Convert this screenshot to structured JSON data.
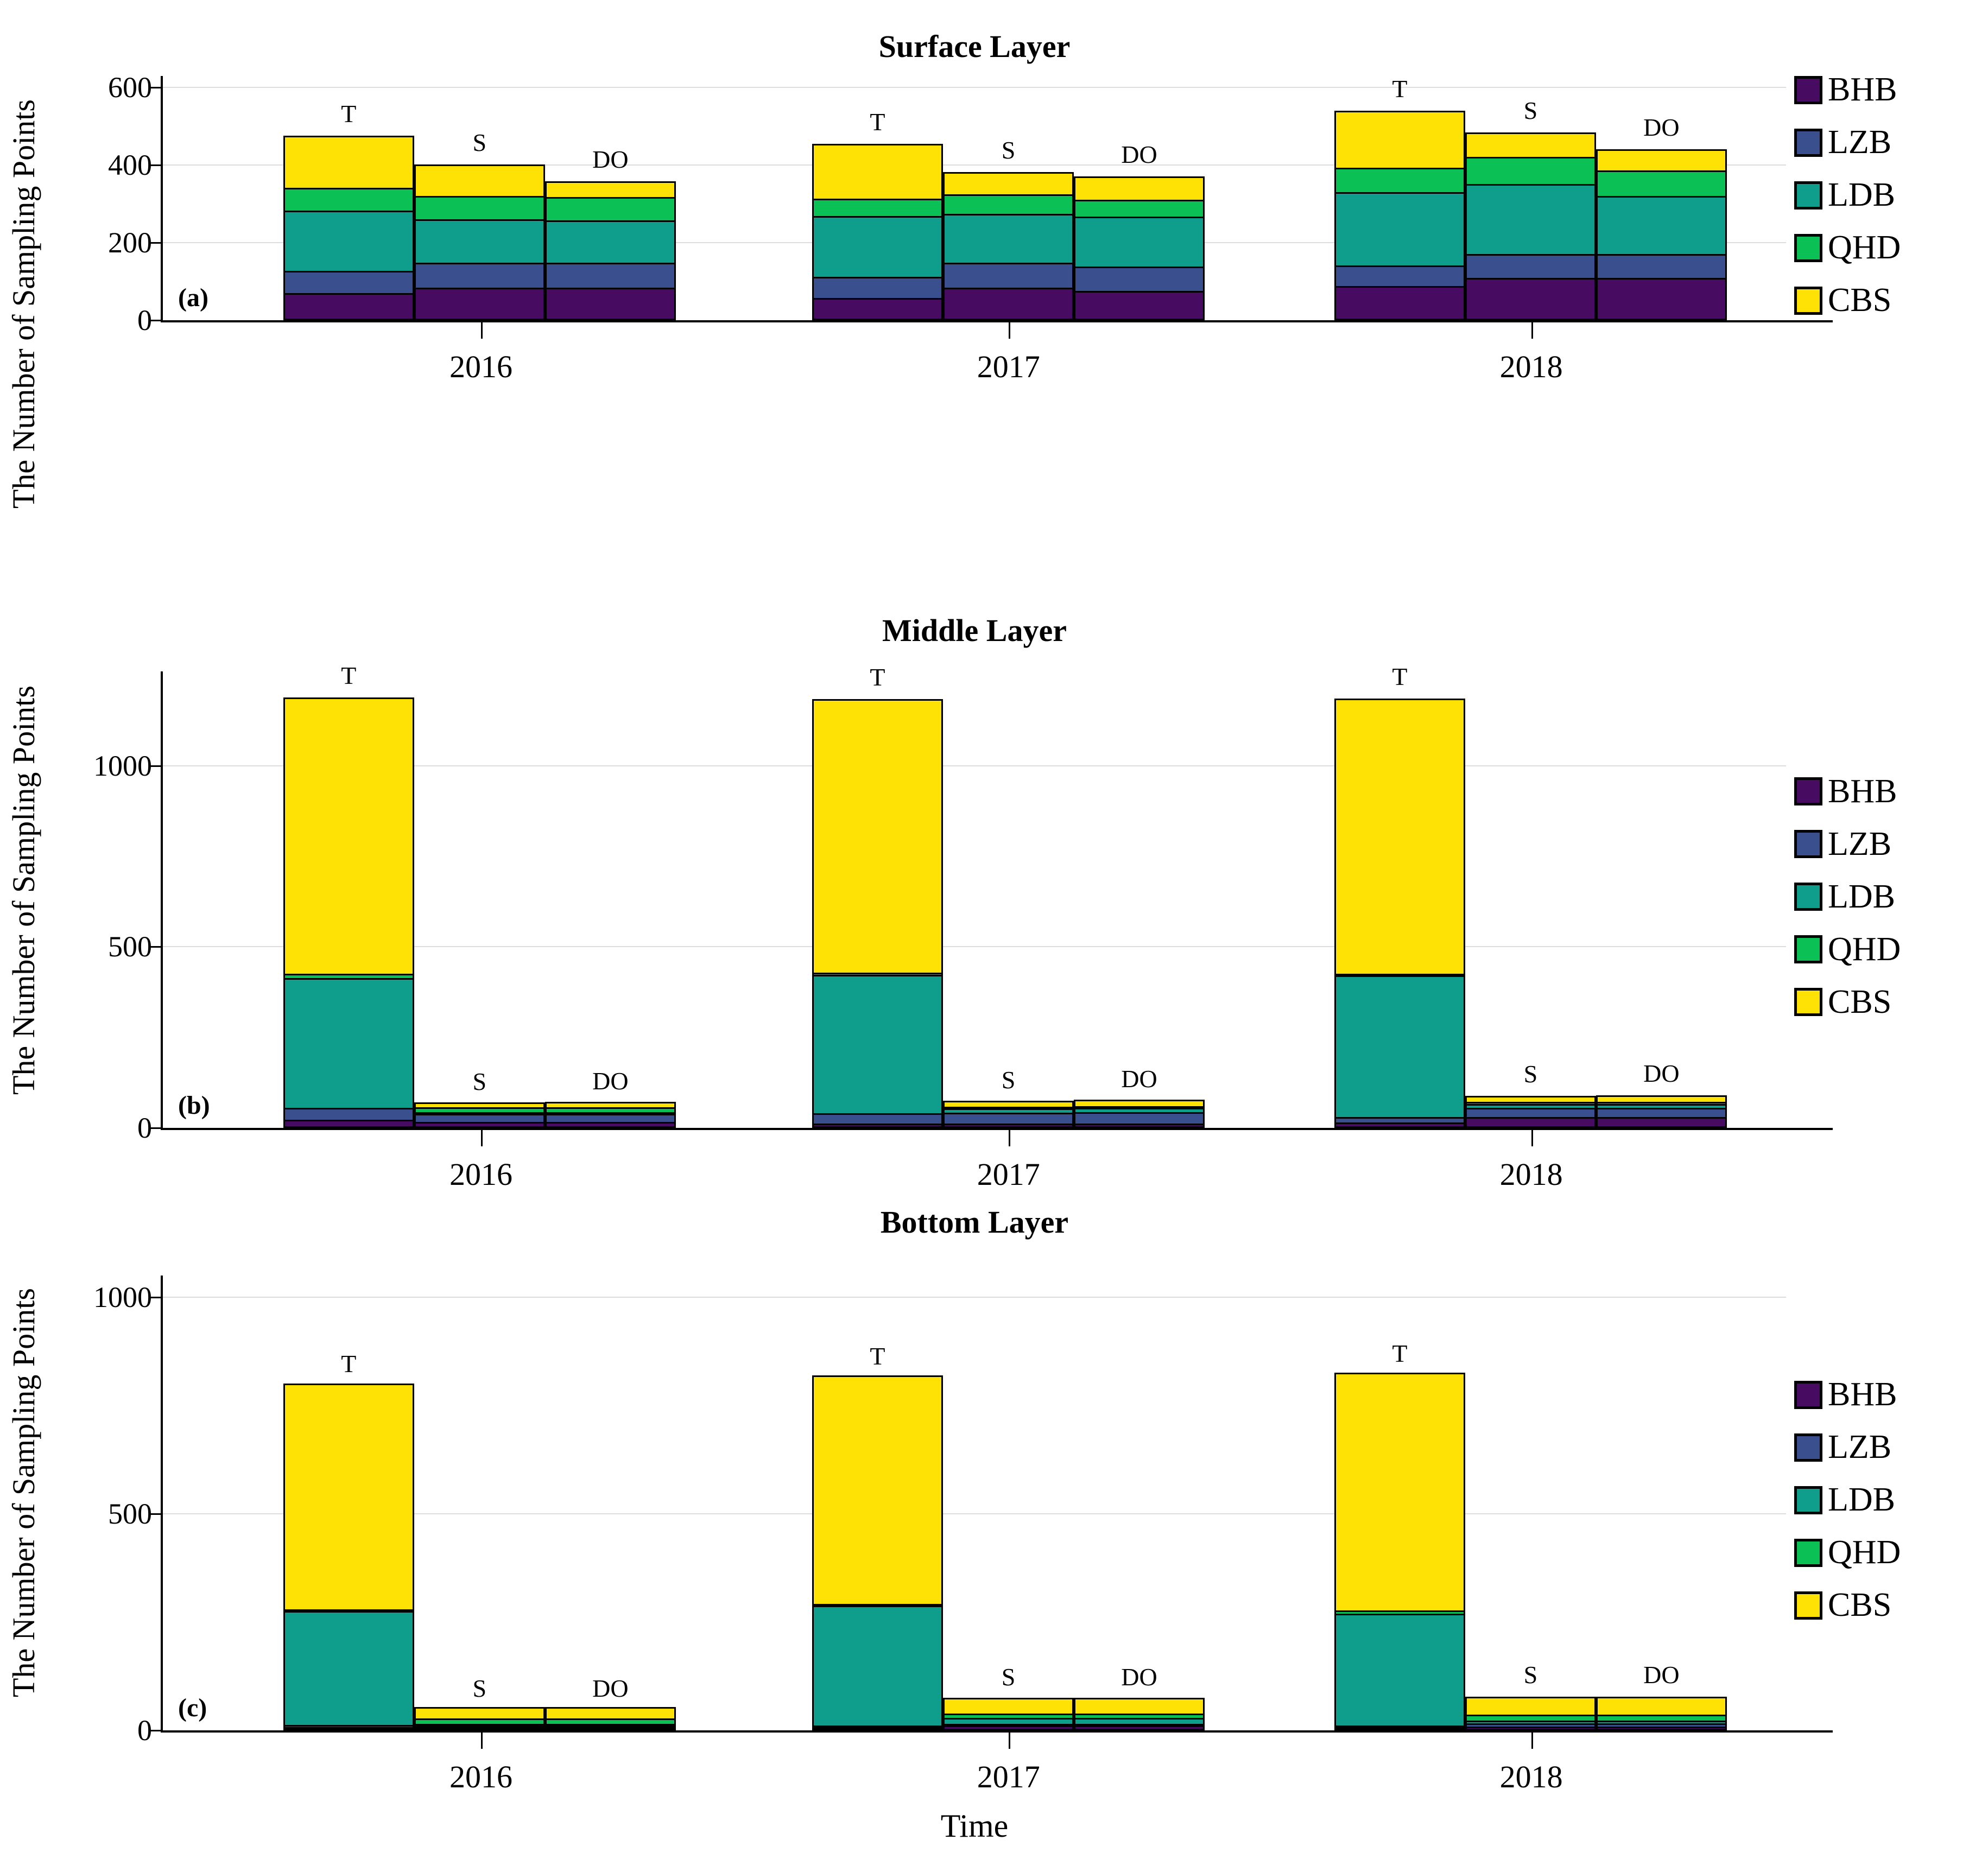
{
  "figure": {
    "xlabel": "Time",
    "ylabel": "The Number of Sampling Points"
  },
  "legend": {
    "entries": [
      {
        "label": "BHB",
        "color": "#470B62"
      },
      {
        "label": "LZB",
        "color": "#3A508E"
      },
      {
        "label": "LDB",
        "color": "#0F9E8C"
      },
      {
        "label": "QHD",
        "color": "#0BC155"
      },
      {
        "label": "CBS",
        "color": "#FFE205"
      }
    ]
  },
  "chart_data": [
    {
      "type": "bar",
      "stacked": true,
      "title": "Surface Layer",
      "panel_label": "(a)",
      "ylabel": "The Number of Sampling Points",
      "xlabel": "",
      "ylim": [
        0,
        630
      ],
      "yticks": [
        0,
        200,
        400,
        600
      ],
      "grid": true,
      "legend_position": "right",
      "categories": [
        "2016",
        "2017",
        "2018"
      ],
      "bar_labels": [
        "T",
        "S",
        "DO"
      ],
      "series_order": [
        "BHB",
        "LZB",
        "LDB",
        "QHD",
        "CBS"
      ],
      "groups": [
        {
          "year": "2016",
          "bars": [
            {
              "label": "T",
              "segments": {
                "BHB": 70,
                "LZB": 57,
                "LDB": 156,
                "QHD": 59,
                "CBS": 134
              },
              "total": 476
            },
            {
              "label": "S",
              "segments": {
                "BHB": 84,
                "LZB": 65,
                "LDB": 112,
                "QHD": 59,
                "CBS": 82
              },
              "total": 402
            },
            {
              "label": "DO",
              "segments": {
                "BHB": 84,
                "LZB": 65,
                "LDB": 108,
                "QHD": 61,
                "CBS": 40
              },
              "total": 358
            }
          ]
        },
        {
          "year": "2017",
          "bars": [
            {
              "label": "T",
              "segments": {
                "BHB": 57,
                "LZB": 55,
                "LDB": 157,
                "QHD": 45,
                "CBS": 141
              },
              "total": 455
            },
            {
              "label": "S",
              "segments": {
                "BHB": 84,
                "LZB": 65,
                "LDB": 126,
                "QHD": 50,
                "CBS": 57
              },
              "total": 382
            },
            {
              "label": "DO",
              "segments": {
                "BHB": 76,
                "LZB": 63,
                "LDB": 128,
                "QHD": 44,
                "CBS": 60
              },
              "total": 371
            }
          ]
        },
        {
          "year": "2018",
          "bars": [
            {
              "label": "T",
              "segments": {
                "BHB": 88,
                "LZB": 53,
                "LDB": 190,
                "QHD": 62,
                "CBS": 148
              },
              "total": 541
            },
            {
              "label": "S",
              "segments": {
                "BHB": 109,
                "LZB": 62,
                "LDB": 181,
                "QHD": 69,
                "CBS": 63
              },
              "total": 484
            },
            {
              "label": "DO",
              "segments": {
                "BHB": 109,
                "LZB": 62,
                "LDB": 150,
                "QHD": 66,
                "CBS": 54
              },
              "total": 441
            }
          ]
        }
      ]
    },
    {
      "type": "bar",
      "stacked": true,
      "title": "Middle Layer",
      "panel_label": "(b)",
      "ylabel": "The Number of Sampling Points",
      "xlabel": "",
      "ylim": [
        0,
        1260
      ],
      "yticks": [
        0,
        500,
        1000
      ],
      "grid": true,
      "legend_position": "right",
      "categories": [
        "2016",
        "2017",
        "2018"
      ],
      "bar_labels": [
        "T",
        "S",
        "DO"
      ],
      "series_order": [
        "BHB",
        "LZB",
        "LDB",
        "QHD",
        "CBS"
      ],
      "groups": [
        {
          "year": "2016",
          "bars": [
            {
              "label": "T",
              "segments": {
                "BHB": 22,
                "LZB": 34,
                "LDB": 357,
                "QHD": 13,
                "CBS": 762
              },
              "total": 1188
            },
            {
              "label": "S",
              "segments": {
                "BHB": 16,
                "LZB": 23,
                "LDB": 2,
                "QHD": 14,
                "CBS": 13
              },
              "total": 68
            },
            {
              "label": "DO",
              "segments": {
                "BHB": 16,
                "LZB": 23,
                "LDB": 2,
                "QHD": 14,
                "CBS": 14
              },
              "total": 69
            }
          ]
        },
        {
          "year": "2017",
          "bars": [
            {
              "label": "T",
              "segments": {
                "BHB": 12,
                "LZB": 28,
                "LDB": 383,
                "QHD": 5,
                "CBS": 755
              },
              "total": 1183
            },
            {
              "label": "S",
              "segments": {
                "BHB": 12,
                "LZB": 30,
                "LDB": 12,
                "QHD": 2,
                "CBS": 16
              },
              "total": 72
            },
            {
              "label": "DO",
              "segments": {
                "BHB": 12,
                "LZB": 32,
                "LDB": 12,
                "QHD": 2,
                "CBS": 17
              },
              "total": 75
            }
          ]
        },
        {
          "year": "2018",
          "bars": [
            {
              "label": "T",
              "segments": {
                "BHB": 15,
                "LZB": 15,
                "LDB": 391,
                "QHD": 4,
                "CBS": 760
              },
              "total": 1185
            },
            {
              "label": "S",
              "segments": {
                "BHB": 30,
                "LZB": 26,
                "LDB": 10,
                "QHD": 6,
                "CBS": 17
              },
              "total": 89
            },
            {
              "label": "DO",
              "segments": {
                "BHB": 30,
                "LZB": 26,
                "LDB": 10,
                "QHD": 6,
                "CBS": 18
              },
              "total": 90
            }
          ]
        }
      ]
    },
    {
      "type": "bar",
      "stacked": true,
      "title": "Bottom Layer",
      "panel_label": "(c)",
      "ylabel": "The Number of Sampling Points",
      "xlabel": "Time",
      "ylim": [
        0,
        1050
      ],
      "yticks": [
        0,
        500,
        1000
      ],
      "grid": true,
      "legend_position": "right",
      "categories": [
        "2016",
        "2017",
        "2018"
      ],
      "bar_labels": [
        "T",
        "S",
        "DO"
      ],
      "series_order": [
        "BHB",
        "LZB",
        "LDB",
        "QHD",
        "CBS"
      ],
      "groups": [
        {
          "year": "2016",
          "bars": [
            {
              "label": "T",
              "segments": {
                "BHB": 3,
                "LZB": 5,
                "LDB": 263,
                "QHD": 3,
                "CBS": 522
              },
              "total": 796
            },
            {
              "label": "S",
              "segments": {
                "BHB": 3,
                "LZB": 3,
                "LDB": 2,
                "QHD": 12,
                "CBS": 27
              },
              "total": 47
            },
            {
              "label": "DO",
              "segments": {
                "BHB": 3,
                "LZB": 3,
                "LDB": 2,
                "QHD": 12,
                "CBS": 27
              },
              "total": 47
            }
          ]
        },
        {
          "year": "2017",
          "bars": [
            {
              "label": "T",
              "segments": {
                "BHB": 2,
                "LZB": 3,
                "LDB": 277,
                "QHD": 4,
                "CBS": 527
              },
              "total": 813
            },
            {
              "label": "S",
              "segments": {
                "BHB": 11,
                "LZB": 2,
                "LDB": 14,
                "QHD": 10,
                "CBS": 36
              },
              "total": 73
            },
            {
              "label": "DO",
              "segments": {
                "BHB": 11,
                "LZB": 2,
                "LDB": 14,
                "QHD": 10,
                "CBS": 36
              },
              "total": 73
            }
          ]
        },
        {
          "year": "2018",
          "bars": [
            {
              "label": "T",
              "segments": {
                "BHB": 3,
                "LZB": 3,
                "LDB": 258,
                "QHD": 8,
                "CBS": 548
              },
              "total": 820
            },
            {
              "label": "S",
              "segments": {
                "BHB": 9,
                "LZB": 7,
                "LDB": 7,
                "QHD": 13,
                "CBS": 42
              },
              "total": 78
            },
            {
              "label": "DO",
              "segments": {
                "BHB": 9,
                "LZB": 7,
                "LDB": 7,
                "QHD": 13,
                "CBS": 42
              },
              "total": 78
            }
          ]
        }
      ]
    }
  ]
}
